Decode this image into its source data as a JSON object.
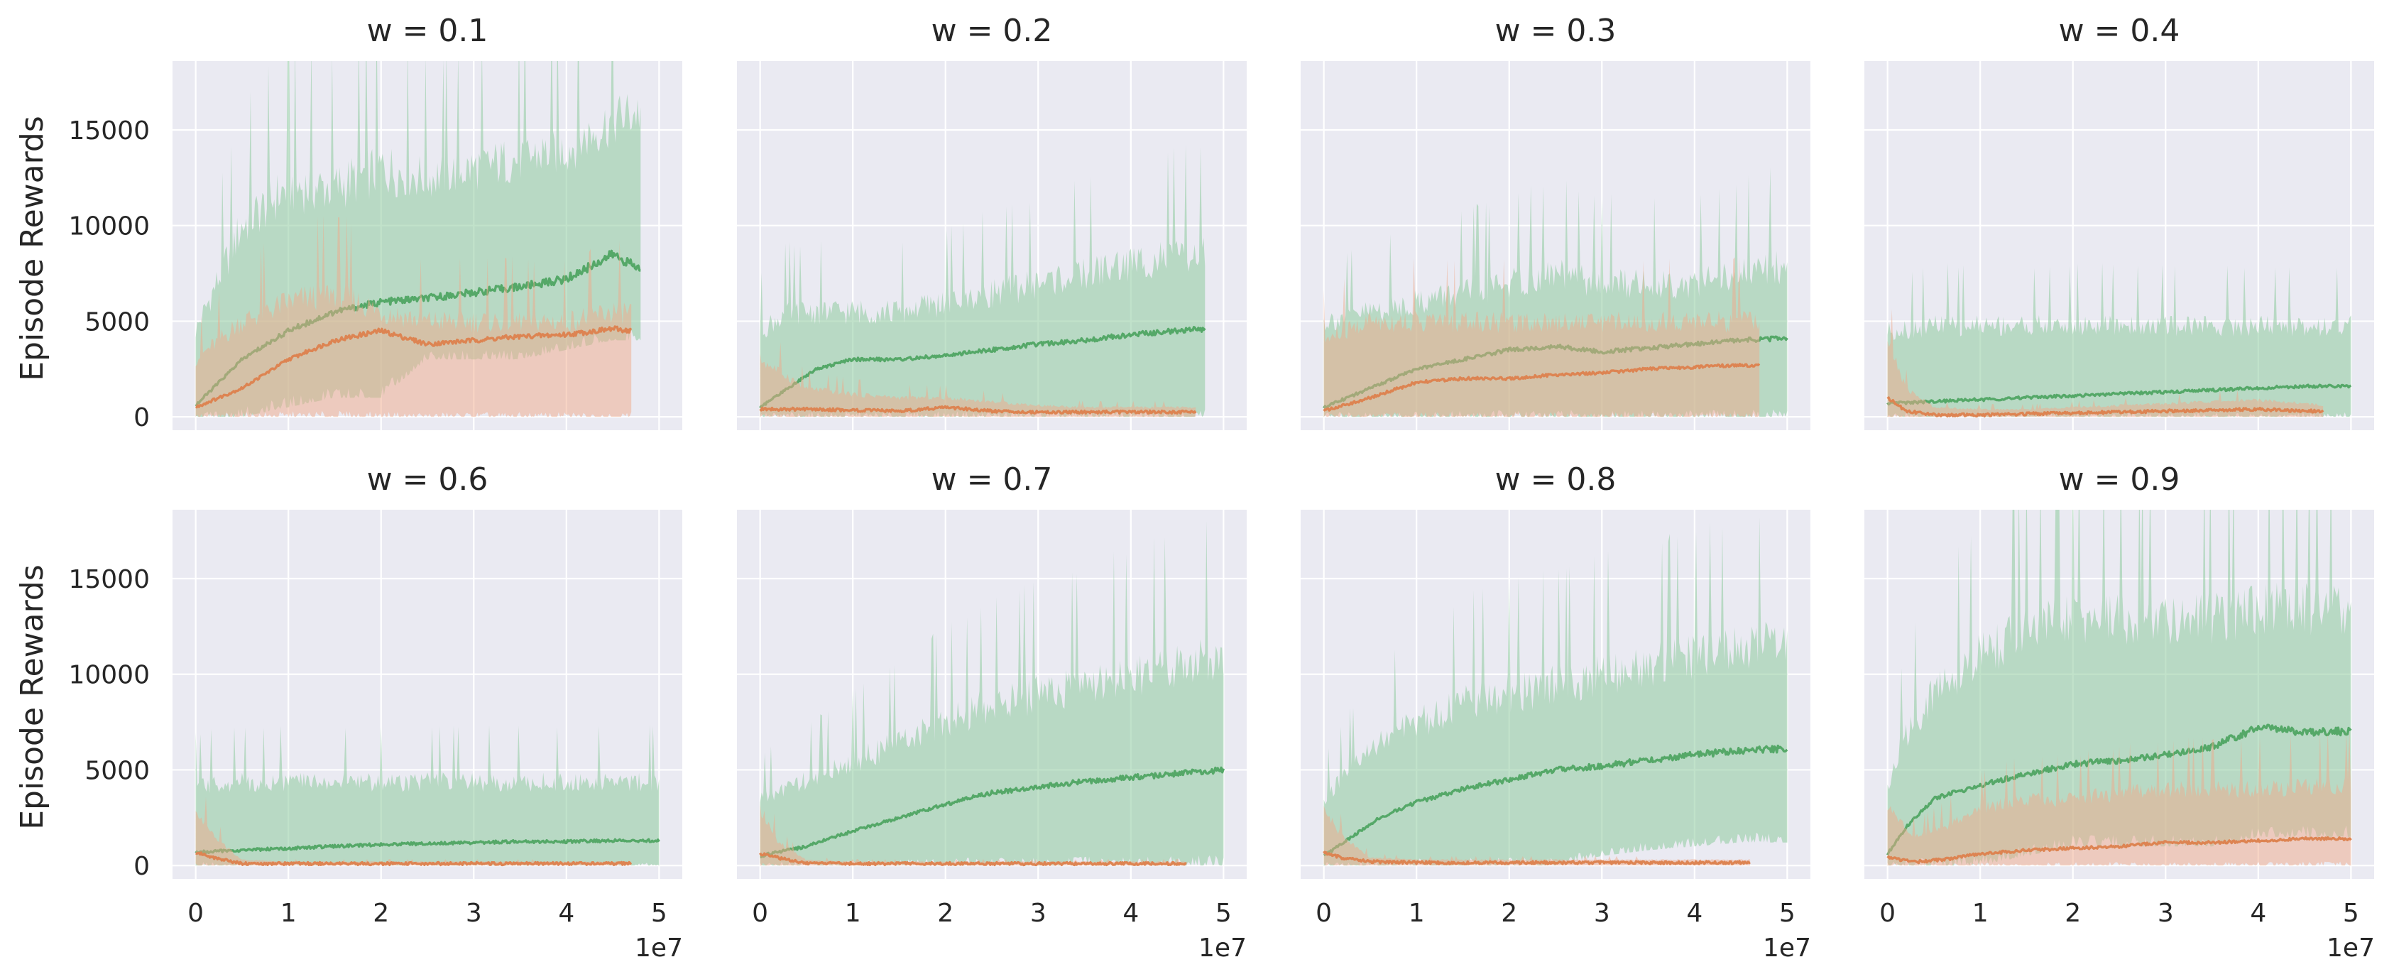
{
  "figure": {
    "ylabel": "Episode Rewards",
    "x_offset_label": "1e7"
  },
  "colors": {
    "panel_bg": "#eaeaf2",
    "grid": "#ffffff",
    "green_line": "#55a868",
    "green_band": "#8ecb9f",
    "orange_line": "#dd8452",
    "orange_band": "#f0a98a",
    "text": "#262626"
  },
  "chart_data": [
    {
      "type": "line",
      "title": "w = 0.1",
      "xlim": [
        -0.25,
        5.25
      ],
      "ylim": [
        -700,
        18600
      ],
      "xticks": [],
      "yticks": [
        0,
        5000,
        10000,
        15000
      ],
      "series": [
        {
          "name": "",
          "color": "#55a868",
          "x": [
            0,
            0.5,
            1,
            1.5,
            2,
            2.5,
            3,
            3.5,
            4,
            4.5,
            4.8
          ],
          "mean": [
            600,
            3000,
            4500,
            5500,
            6000,
            6200,
            6500,
            6800,
            7200,
            8500,
            7700
          ],
          "lower": [
            0,
            0,
            500,
            1000,
            1000,
            3000,
            3000,
            3000,
            3500,
            4000,
            4000
          ],
          "upper": [
            4500,
            10000,
            12000,
            12000,
            13000,
            12500,
            13000,
            13500,
            14000,
            15500,
            16000
          ]
        },
        {
          "name": "",
          "color": "#dd8452",
          "x": [
            0,
            0.5,
            1,
            1.5,
            2,
            2.5,
            3,
            3.5,
            4,
            4.5,
            4.7
          ],
          "mean": [
            500,
            1500,
            3000,
            4000,
            4500,
            3800,
            4000,
            4200,
            4300,
            4600,
            4500
          ],
          "lower": [
            0,
            0,
            0,
            0,
            0,
            0,
            0,
            0,
            0,
            0,
            0
          ],
          "upper": [
            3000,
            5000,
            6000,
            6500,
            5500,
            5000,
            5000,
            5000,
            5000,
            5500,
            5500
          ]
        }
      ]
    },
    {
      "type": "line",
      "title": "w = 0.2",
      "xlim": [
        -0.25,
        5.25
      ],
      "ylim": [
        -700,
        18600
      ],
      "xticks": [],
      "yticks": [
        0,
        5000,
        10000,
        15000
      ],
      "series": [
        {
          "name": "",
          "color": "#55a868",
          "x": [
            0,
            0.3,
            0.6,
            1,
            1.5,
            2,
            2.5,
            3,
            3.5,
            4,
            4.5,
            4.8
          ],
          "mean": [
            500,
            1500,
            2500,
            3000,
            3000,
            3200,
            3500,
            3800,
            4000,
            4300,
            4500,
            4600
          ],
          "lower": [
            0,
            0,
            0,
            0,
            0,
            0,
            0,
            0,
            0,
            0,
            0,
            0
          ],
          "upper": [
            4500,
            5500,
            5500,
            5500,
            5500,
            6000,
            6500,
            7000,
            7500,
            8000,
            8500,
            8500
          ]
        },
        {
          "name": "",
          "color": "#dd8452",
          "x": [
            0,
            0.5,
            1,
            1.5,
            2,
            2.5,
            3,
            3.5,
            4,
            4.5,
            4.7
          ],
          "mean": [
            400,
            400,
            350,
            300,
            500,
            300,
            250,
            250,
            250,
            250,
            250
          ],
          "lower": [
            0,
            0,
            0,
            0,
            0,
            0,
            0,
            0,
            0,
            0,
            0
          ],
          "upper": [
            3000,
            1500,
            1200,
            1000,
            1000,
            800,
            600,
            500,
            500,
            500,
            500
          ]
        }
      ]
    },
    {
      "type": "line",
      "title": "w = 0.3",
      "xlim": [
        -0.25,
        5.25
      ],
      "ylim": [
        -700,
        18600
      ],
      "xticks": [],
      "yticks": [
        0,
        5000,
        10000,
        15000
      ],
      "series": [
        {
          "name": "",
          "color": "#55a868",
          "x": [
            0,
            0.5,
            1,
            1.5,
            2,
            2.5,
            3,
            3.5,
            4,
            4.5,
            5
          ],
          "mean": [
            500,
            1500,
            2500,
            3000,
            3500,
            3700,
            3400,
            3600,
            3800,
            4000,
            4100
          ],
          "lower": [
            0,
            0,
            0,
            0,
            0,
            0,
            0,
            0,
            0,
            0,
            0
          ],
          "upper": [
            5000,
            5500,
            6000,
            6500,
            7000,
            7500,
            7000,
            7000,
            7000,
            7500,
            8000
          ]
        },
        {
          "name": "",
          "color": "#dd8452",
          "x": [
            0,
            0.5,
            1,
            1.5,
            2,
            2.5,
            3,
            3.5,
            4,
            4.5,
            4.7
          ],
          "mean": [
            300,
            1000,
            1800,
            2000,
            2000,
            2200,
            2300,
            2500,
            2600,
            2700,
            2700
          ],
          "lower": [
            0,
            0,
            0,
            0,
            0,
            0,
            0,
            0,
            0,
            0,
            0
          ],
          "upper": [
            4000,
            5000,
            5000,
            5000,
            5000,
            5000,
            5000,
            5000,
            5000,
            5000,
            5000
          ]
        }
      ]
    },
    {
      "type": "line",
      "title": "w = 0.4",
      "xlim": [
        -0.25,
        5.25
      ],
      "ylim": [
        -700,
        18600
      ],
      "xticks": [],
      "yticks": [
        0,
        5000,
        10000,
        15000
      ],
      "series": [
        {
          "name": "",
          "color": "#55a868",
          "x": [
            0,
            0.5,
            1,
            1.5,
            2,
            2.5,
            3,
            3.5,
            4,
            4.5,
            5
          ],
          "mean": [
            700,
            800,
            900,
            1000,
            1100,
            1200,
            1300,
            1400,
            1500,
            1600,
            1600
          ],
          "lower": [
            0,
            0,
            0,
            0,
            0,
            0,
            0,
            0,
            0,
            0,
            0
          ],
          "upper": [
            4500,
            4800,
            4800,
            4800,
            4800,
            4800,
            4800,
            4800,
            4800,
            4800,
            4800
          ]
        },
        {
          "name": "",
          "color": "#dd8452",
          "x": [
            0,
            0.2,
            0.5,
            1,
            1.5,
            2,
            2.5,
            3,
            3.5,
            4,
            4.5,
            4.7
          ],
          "mean": [
            1000,
            300,
            100,
            100,
            150,
            200,
            250,
            300,
            350,
            400,
            300,
            300
          ],
          "lower": [
            0,
            0,
            0,
            0,
            0,
            0,
            0,
            0,
            0,
            0,
            0,
            0
          ],
          "upper": [
            4000,
            1500,
            500,
            400,
            400,
            500,
            600,
            700,
            800,
            900,
            700,
            600
          ]
        }
      ]
    },
    {
      "type": "line",
      "title": "w = 0.6",
      "xlim": [
        -0.25,
        5.25
      ],
      "ylim": [
        -700,
        18600
      ],
      "xticks": [
        0,
        1,
        2,
        3,
        4,
        5
      ],
      "yticks": [
        0,
        5000,
        10000,
        15000
      ],
      "series": [
        {
          "name": "",
          "color": "#55a868",
          "x": [
            0,
            0.5,
            1,
            1.5,
            2,
            2.5,
            3,
            3.5,
            4,
            4.5,
            5
          ],
          "mean": [
            700,
            800,
            900,
            1000,
            1100,
            1150,
            1200,
            1250,
            1250,
            1300,
            1300
          ],
          "lower": [
            0,
            0,
            0,
            0,
            0,
            0,
            0,
            0,
            0,
            0,
            0
          ],
          "upper": [
            4200,
            4400,
            4400,
            4400,
            4400,
            4400,
            4400,
            4400,
            4400,
            4400,
            4400
          ]
        },
        {
          "name": "",
          "color": "#dd8452",
          "x": [
            0,
            0.2,
            0.5,
            1,
            2,
            3,
            4,
            4.7
          ],
          "mean": [
            700,
            400,
            100,
            100,
            100,
            100,
            100,
            100
          ],
          "lower": [
            0,
            0,
            0,
            0,
            0,
            0,
            0,
            0
          ],
          "upper": [
            3000,
            1500,
            300,
            200,
            200,
            200,
            200,
            200
          ]
        }
      ]
    },
    {
      "type": "line",
      "title": "w = 0.7",
      "xlim": [
        -0.25,
        5.25
      ],
      "ylim": [
        -700,
        18600
      ],
      "xticks": [
        0,
        1,
        2,
        3,
        4,
        5
      ],
      "yticks": [
        0,
        5000,
        10000,
        15000
      ],
      "series": [
        {
          "name": "",
          "color": "#55a868",
          "x": [
            0,
            0.5,
            1,
            1.5,
            2,
            2.5,
            3,
            3.5,
            4,
            4.5,
            5
          ],
          "mean": [
            500,
            1000,
            1800,
            2500,
            3200,
            3800,
            4100,
            4400,
            4600,
            4800,
            5000
          ],
          "lower": [
            0,
            0,
            0,
            0,
            0,
            0,
            0,
            0,
            0,
            0,
            0
          ],
          "upper": [
            3500,
            4500,
            5500,
            6500,
            7500,
            8500,
            9000,
            9500,
            10000,
            10500,
            11000
          ]
        },
        {
          "name": "",
          "color": "#dd8452",
          "x": [
            0,
            0.2,
            0.5,
            1,
            2,
            3,
            4,
            4.6
          ],
          "mean": [
            600,
            400,
            100,
            100,
            100,
            100,
            100,
            100
          ],
          "lower": [
            0,
            0,
            0,
            0,
            0,
            0,
            0,
            0
          ],
          "upper": [
            3000,
            1200,
            300,
            200,
            200,
            200,
            200,
            200
          ]
        }
      ]
    },
    {
      "type": "line",
      "title": "w = 0.8",
      "xlim": [
        -0.25,
        5.25
      ],
      "ylim": [
        -700,
        18600
      ],
      "xticks": [
        0,
        1,
        2,
        3,
        4,
        5
      ],
      "yticks": [
        0,
        5000,
        10000,
        15000
      ],
      "series": [
        {
          "name": "",
          "color": "#55a868",
          "x": [
            0,
            0.3,
            0.6,
            1,
            1.5,
            2,
            2.5,
            3,
            3.5,
            4,
            4.5,
            5
          ],
          "mean": [
            500,
            1500,
            2500,
            3300,
            4000,
            4500,
            5000,
            5200,
            5500,
            5800,
            6000,
            6100
          ],
          "lower": [
            0,
            0,
            0,
            0,
            0,
            0,
            0,
            500,
            800,
            1000,
            1200,
            1200
          ],
          "upper": [
            3500,
            5000,
            6500,
            7500,
            8500,
            9000,
            9500,
            10000,
            10500,
            11000,
            11500,
            12000
          ]
        },
        {
          "name": "",
          "color": "#dd8452",
          "x": [
            0,
            0.2,
            0.5,
            1,
            2,
            3,
            4,
            4.6
          ],
          "mean": [
            700,
            400,
            200,
            150,
            150,
            150,
            150,
            150
          ],
          "lower": [
            0,
            0,
            0,
            0,
            0,
            0,
            0,
            0
          ],
          "upper": [
            3000,
            1500,
            400,
            300,
            300,
            300,
            300,
            300
          ]
        }
      ]
    },
    {
      "type": "line",
      "title": "w = 0.9",
      "xlim": [
        -0.25,
        5.25
      ],
      "ylim": [
        -700,
        18600
      ],
      "xticks": [
        0,
        1,
        2,
        3,
        4,
        5
      ],
      "yticks": [
        0,
        5000,
        10000,
        15000
      ],
      "series": [
        {
          "name": "",
          "color": "#55a868",
          "x": [
            0,
            0.2,
            0.5,
            1,
            1.5,
            2,
            2.5,
            3,
            3.5,
            4,
            4.5,
            5
          ],
          "mean": [
            600,
            2000,
            3500,
            4200,
            4800,
            5300,
            5500,
            5800,
            6200,
            7200,
            7000,
            7000
          ],
          "lower": [
            0,
            0,
            0,
            0,
            500,
            1000,
            1000,
            1000,
            1000,
            1500,
            1500,
            1500
          ],
          "upper": [
            4000,
            7000,
            9000,
            11000,
            12500,
            13000,
            13000,
            13000,
            13000,
            13500,
            13500,
            13500
          ]
        },
        {
          "name": "",
          "color": "#dd8452",
          "x": [
            0,
            0.3,
            0.6,
            1,
            1.5,
            2,
            2.5,
            3,
            3.5,
            4,
            4.5,
            5
          ],
          "mean": [
            400,
            200,
            300,
            600,
            800,
            900,
            1000,
            1200,
            1200,
            1300,
            1400,
            1400
          ],
          "lower": [
            0,
            0,
            0,
            0,
            0,
            0,
            0,
            0,
            0,
            0,
            0,
            0
          ],
          "upper": [
            3000,
            1500,
            2000,
            3000,
            3500,
            3500,
            3800,
            4000,
            4000,
            4000,
            4200,
            4200
          ]
        }
      ]
    }
  ]
}
